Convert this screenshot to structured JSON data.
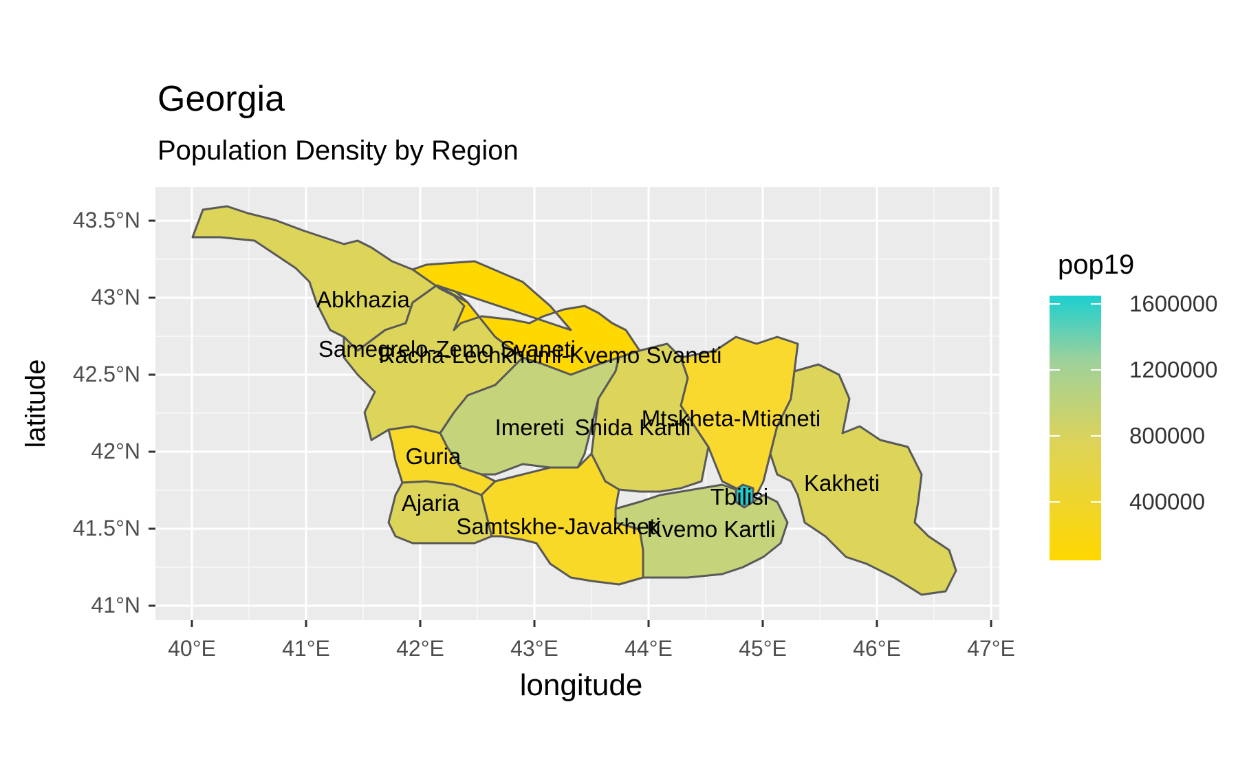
{
  "chart": {
    "title": "Georgia",
    "subtitle": "Population Density by Region",
    "xlabel": "longitude",
    "ylabel": "latitude"
  },
  "axes": {
    "x_ticks": [
      "40°E",
      "41°E",
      "42°E",
      "43°E",
      "44°E",
      "45°E",
      "46°E",
      "47°E"
    ],
    "y_ticks": [
      "43.5°N",
      "43°N",
      "42.5°N",
      "42°N",
      "41.5°N",
      "41°N"
    ]
  },
  "legend": {
    "title": "pop19",
    "labels": [
      "1600000",
      "1200000",
      "800000",
      "400000"
    ],
    "colors": {
      "low": "#FFD700",
      "mid": "#C9D47A",
      "high": "#1CCFD0"
    }
  },
  "chart_data": {
    "type": "map",
    "fill_variable": "pop19",
    "grid": true,
    "legend_position": "right",
    "xlim": [
      40,
      47
    ],
    "ylim": [
      41,
      43.6
    ],
    "regions": [
      {
        "name": "Abkhazia",
        "label_lon": 41.5,
        "label_lat": 42.97,
        "pop19": 245000
      },
      {
        "name": "Samegrelo-Zemo Svaneti",
        "label_lon": 42.2,
        "label_lat": 42.66,
        "pop19": 310000
      },
      {
        "name": "Racha-Lechkhumi-Kvemo Svaneti",
        "label_lon": 43.0,
        "label_lat": 42.62,
        "pop19": 30000
      },
      {
        "name": "Imereti",
        "label_lon": 42.7,
        "label_lat": 42.15,
        "pop19": 700000
      },
      {
        "name": "Shida Kartli",
        "label_lon": 43.8,
        "label_lat": 42.15,
        "pop19": 260000
      },
      {
        "name": "Mtskheta-Mtianeti",
        "label_lon": 44.75,
        "label_lat": 42.2,
        "pop19": 95000
      },
      {
        "name": "Guria",
        "label_lon": 42.1,
        "label_lat": 41.96,
        "pop19": 110000
      },
      {
        "name": "Ajaria",
        "label_lon": 42.1,
        "label_lat": 41.65,
        "pop19": 350000
      },
      {
        "name": "Tbilisi",
        "label_lon": 44.8,
        "label_lat": 41.7,
        "pop19": 1170000
      },
      {
        "name": "Kakheti",
        "label_lon": 45.7,
        "label_lat": 41.8,
        "pop19": 315000
      },
      {
        "name": "Samtskhe-Javakheti",
        "label_lon": 43.1,
        "label_lat": 41.52,
        "pop19": 155000
      },
      {
        "name": "Kvemo Kartli",
        "label_lon": 44.4,
        "label_lat": 41.5,
        "pop19": 430000
      }
    ]
  }
}
